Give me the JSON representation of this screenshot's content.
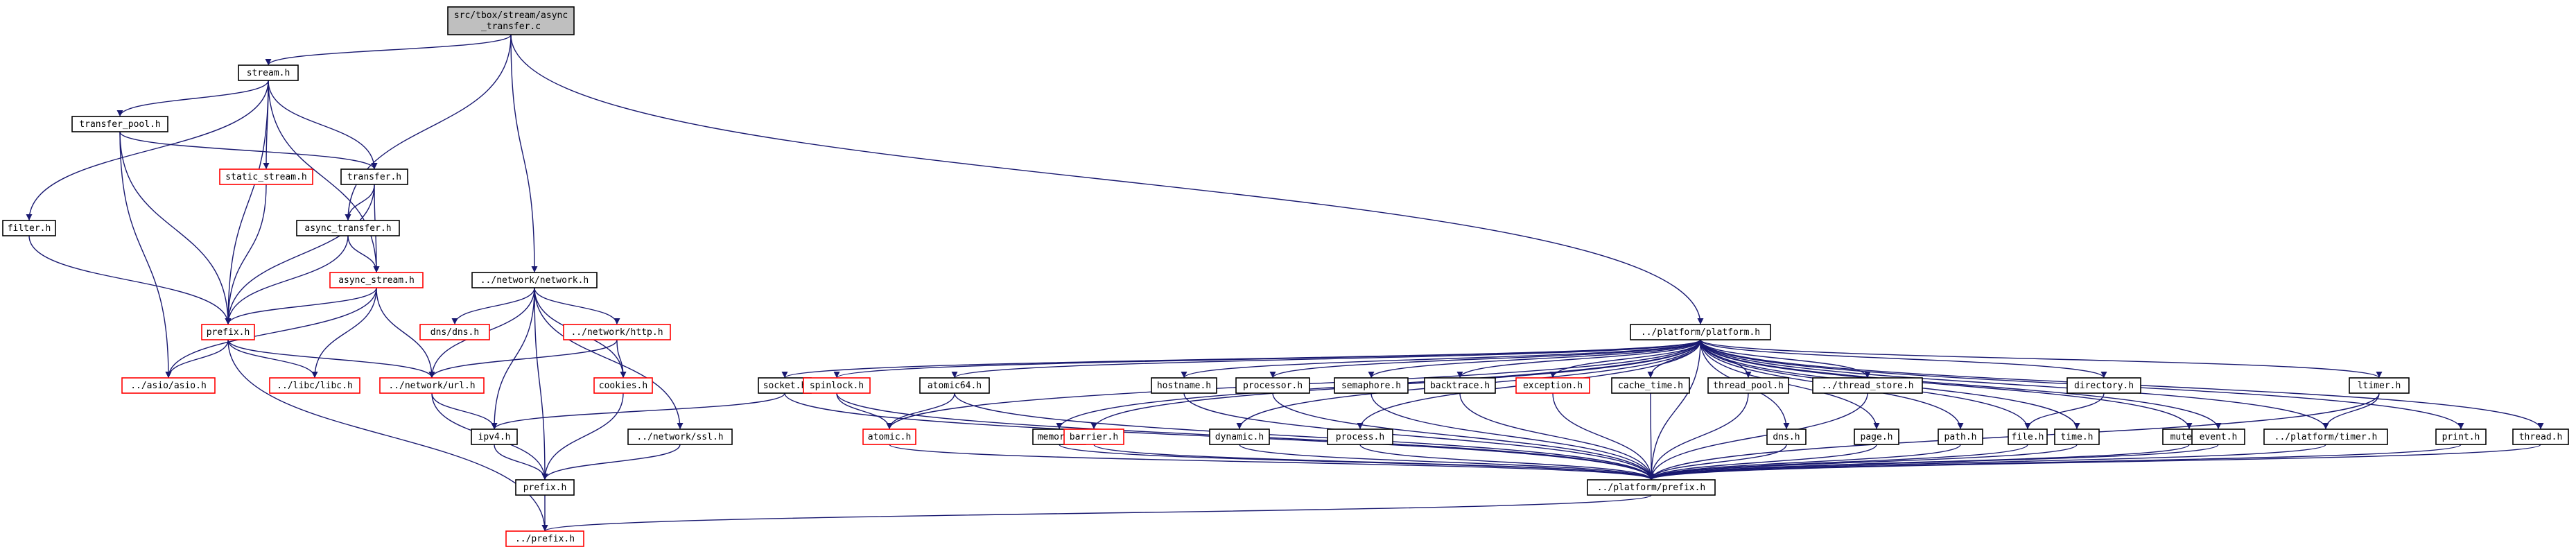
{
  "diagram": {
    "type": "include-dependency-graph",
    "nodes": [
      {
        "id": "root",
        "lines": [
          "src/tbox/stream/async",
          "_transfer.c"
        ],
        "border": "root"
      },
      {
        "id": "stream",
        "lines": [
          "stream.h"
        ],
        "border": "black"
      },
      {
        "id": "transfer_pool",
        "lines": [
          "transfer_pool.h"
        ],
        "border": "black"
      },
      {
        "id": "static_stream",
        "lines": [
          "static_stream.h"
        ],
        "border": "red"
      },
      {
        "id": "transfer",
        "lines": [
          "transfer.h"
        ],
        "border": "black"
      },
      {
        "id": "filter",
        "lines": [
          "filter.h"
        ],
        "border": "black"
      },
      {
        "id": "async_transfer",
        "lines": [
          "async_transfer.h"
        ],
        "border": "black"
      },
      {
        "id": "async_stream",
        "lines": [
          "async_stream.h"
        ],
        "border": "red"
      },
      {
        "id": "prefix_h",
        "lines": [
          "prefix.h"
        ],
        "border": "red"
      },
      {
        "id": "asio",
        "lines": [
          "../asio/asio.h"
        ],
        "border": "red"
      },
      {
        "id": "libc",
        "lines": [
          "../libc/libc.h"
        ],
        "border": "red"
      },
      {
        "id": "url",
        "lines": [
          "../network/url.h"
        ],
        "border": "red"
      },
      {
        "id": "network",
        "lines": [
          "../network/network.h"
        ],
        "border": "black"
      },
      {
        "id": "dns",
        "lines": [
          "dns/dns.h"
        ],
        "border": "red"
      },
      {
        "id": "http",
        "lines": [
          "../network/http.h"
        ],
        "border": "red"
      },
      {
        "id": "cookies",
        "lines": [
          "cookies.h"
        ],
        "border": "red"
      },
      {
        "id": "ipv4",
        "lines": [
          "ipv4.h"
        ],
        "border": "black"
      },
      {
        "id": "ssl",
        "lines": [
          "../network/ssl.h"
        ],
        "border": "black"
      },
      {
        "id": "prefix2",
        "lines": [
          "prefix.h"
        ],
        "border": "black"
      },
      {
        "id": "prefix_up",
        "lines": [
          "../prefix.h"
        ],
        "border": "red"
      },
      {
        "id": "platform",
        "lines": [
          "../platform/platform.h"
        ],
        "border": "black"
      },
      {
        "id": "socket",
        "lines": [
          "socket.h"
        ],
        "border": "black"
      },
      {
        "id": "spinlock",
        "lines": [
          "spinlock.h"
        ],
        "border": "red"
      },
      {
        "id": "atomic64",
        "lines": [
          "atomic64.h"
        ],
        "border": "black"
      },
      {
        "id": "atomic",
        "lines": [
          "atomic.h"
        ],
        "border": "red"
      },
      {
        "id": "memory",
        "lines": [
          "memory.h"
        ],
        "border": "black"
      },
      {
        "id": "barrier",
        "lines": [
          "barrier.h"
        ],
        "border": "red"
      },
      {
        "id": "hostname",
        "lines": [
          "hostname.h"
        ],
        "border": "black"
      },
      {
        "id": "dynamic",
        "lines": [
          "dynamic.h"
        ],
        "border": "black"
      },
      {
        "id": "processor",
        "lines": [
          "processor.h"
        ],
        "border": "black"
      },
      {
        "id": "process",
        "lines": [
          "process.h"
        ],
        "border": "black"
      },
      {
        "id": "semaphore",
        "lines": [
          "semaphore.h"
        ],
        "border": "black"
      },
      {
        "id": "backtrace",
        "lines": [
          "backtrace.h"
        ],
        "border": "black"
      },
      {
        "id": "exception",
        "lines": [
          "exception.h"
        ],
        "border": "red"
      },
      {
        "id": "cache_time",
        "lines": [
          "cache_time.h"
        ],
        "border": "black"
      },
      {
        "id": "thread_pool",
        "lines": [
          "thread_pool.h"
        ],
        "border": "black"
      },
      {
        "id": "thread_store",
        "lines": [
          "../thread_store.h"
        ],
        "border": "black"
      },
      {
        "id": "dns2",
        "lines": [
          "dns.h"
        ],
        "border": "black"
      },
      {
        "id": "page",
        "lines": [
          "page.h"
        ],
        "border": "black"
      },
      {
        "id": "path",
        "lines": [
          "path.h"
        ],
        "border": "black"
      },
      {
        "id": "file",
        "lines": [
          "file.h"
        ],
        "border": "black"
      },
      {
        "id": "directory",
        "lines": [
          "directory.h"
        ],
        "border": "black"
      },
      {
        "id": "time",
        "lines": [
          "time.h"
        ],
        "border": "black"
      },
      {
        "id": "mutex",
        "lines": [
          "mutex.h"
        ],
        "border": "black"
      },
      {
        "id": "event",
        "lines": [
          "event.h"
        ],
        "border": "black"
      },
      {
        "id": "ltimer",
        "lines": [
          "ltimer.h"
        ],
        "border": "black"
      },
      {
        "id": "ptimer",
        "lines": [
          "../platform/timer.h"
        ],
        "border": "black"
      },
      {
        "id": "print",
        "lines": [
          "print.h"
        ],
        "border": "black"
      },
      {
        "id": "thread",
        "lines": [
          "thread.h"
        ],
        "border": "black"
      },
      {
        "id": "pprefix",
        "lines": [
          "../platform/prefix.h"
        ],
        "border": "black"
      }
    ],
    "edges": [
      [
        "root",
        "stream"
      ],
      [
        "root",
        "async_transfer"
      ],
      [
        "root",
        "network"
      ],
      [
        "root",
        "platform"
      ],
      [
        "stream",
        "transfer_pool"
      ],
      [
        "stream",
        "static_stream"
      ],
      [
        "stream",
        "transfer"
      ],
      [
        "stream",
        "filter"
      ],
      [
        "stream",
        "async_stream"
      ],
      [
        "stream",
        "prefix_h"
      ],
      [
        "transfer_pool",
        "transfer"
      ],
      [
        "transfer_pool",
        "prefix_h"
      ],
      [
        "transfer_pool",
        "asio"
      ],
      [
        "static_stream",
        "prefix_h"
      ],
      [
        "transfer",
        "async_transfer"
      ],
      [
        "transfer",
        "async_stream"
      ],
      [
        "transfer",
        "prefix_h"
      ],
      [
        "filter",
        "prefix_h"
      ],
      [
        "async_transfer",
        "async_stream"
      ],
      [
        "async_transfer",
        "prefix_h"
      ],
      [
        "async_stream",
        "prefix_h"
      ],
      [
        "async_stream",
        "asio"
      ],
      [
        "async_stream",
        "libc"
      ],
      [
        "async_stream",
        "url"
      ],
      [
        "prefix_h",
        "asio"
      ],
      [
        "prefix_h",
        "libc"
      ],
      [
        "prefix_h",
        "url"
      ],
      [
        "prefix_h",
        "prefix_up"
      ],
      [
        "network",
        "url"
      ],
      [
        "network",
        "dns"
      ],
      [
        "network",
        "http"
      ],
      [
        "network",
        "cookies"
      ],
      [
        "network",
        "ipv4"
      ],
      [
        "network",
        "ssl"
      ],
      [
        "network",
        "prefix2"
      ],
      [
        "http",
        "url"
      ],
      [
        "http",
        "cookies"
      ],
      [
        "url",
        "ipv4"
      ],
      [
        "url",
        "prefix2"
      ],
      [
        "cookies",
        "prefix2"
      ],
      [
        "ipv4",
        "prefix2"
      ],
      [
        "ssl",
        "prefix2"
      ],
      [
        "prefix2",
        "prefix_up"
      ],
      [
        "platform",
        "socket"
      ],
      [
        "platform",
        "spinlock"
      ],
      [
        "platform",
        "atomic64"
      ],
      [
        "platform",
        "atomic"
      ],
      [
        "platform",
        "memory"
      ],
      [
        "platform",
        "barrier"
      ],
      [
        "platform",
        "hostname"
      ],
      [
        "platform",
        "dynamic"
      ],
      [
        "platform",
        "processor"
      ],
      [
        "platform",
        "process"
      ],
      [
        "platform",
        "semaphore"
      ],
      [
        "platform",
        "backtrace"
      ],
      [
        "platform",
        "exception"
      ],
      [
        "platform",
        "cache_time"
      ],
      [
        "platform",
        "thread_pool"
      ],
      [
        "platform",
        "thread_store"
      ],
      [
        "platform",
        "dns2"
      ],
      [
        "platform",
        "page"
      ],
      [
        "platform",
        "path"
      ],
      [
        "platform",
        "file"
      ],
      [
        "platform",
        "directory"
      ],
      [
        "platform",
        "time"
      ],
      [
        "platform",
        "mutex"
      ],
      [
        "platform",
        "event"
      ],
      [
        "platform",
        "ltimer"
      ],
      [
        "platform",
        "ptimer"
      ],
      [
        "platform",
        "print"
      ],
      [
        "platform",
        "thread"
      ],
      [
        "platform",
        "pprefix"
      ],
      [
        "socket",
        "ipv4"
      ],
      [
        "socket",
        "pprefix"
      ],
      [
        "spinlock",
        "atomic"
      ],
      [
        "spinlock",
        "pprefix"
      ],
      [
        "atomic64",
        "atomic"
      ],
      [
        "atomic64",
        "pprefix"
      ],
      [
        "atomic",
        "pprefix"
      ],
      [
        "memory",
        "pprefix"
      ],
      [
        "barrier",
        "pprefix"
      ],
      [
        "hostname",
        "pprefix"
      ],
      [
        "dynamic",
        "pprefix"
      ],
      [
        "processor",
        "pprefix"
      ],
      [
        "process",
        "pprefix"
      ],
      [
        "semaphore",
        "pprefix"
      ],
      [
        "backtrace",
        "pprefix"
      ],
      [
        "exception",
        "pprefix"
      ],
      [
        "cache_time",
        "pprefix"
      ],
      [
        "thread_pool",
        "pprefix"
      ],
      [
        "thread_store",
        "pprefix"
      ],
      [
        "dns2",
        "pprefix"
      ],
      [
        "page",
        "pprefix"
      ],
      [
        "path",
        "pprefix"
      ],
      [
        "directory",
        "file"
      ],
      [
        "file",
        "pprefix"
      ],
      [
        "time",
        "pprefix"
      ],
      [
        "mutex",
        "pprefix"
      ],
      [
        "event",
        "pprefix"
      ],
      [
        "ltimer",
        "ptimer"
      ],
      [
        "ltimer",
        "pprefix"
      ],
      [
        "ptimer",
        "pprefix"
      ],
      [
        "print",
        "pprefix"
      ],
      [
        "thread",
        "pprefix"
      ],
      [
        "pprefix",
        "prefix_up"
      ]
    ]
  }
}
